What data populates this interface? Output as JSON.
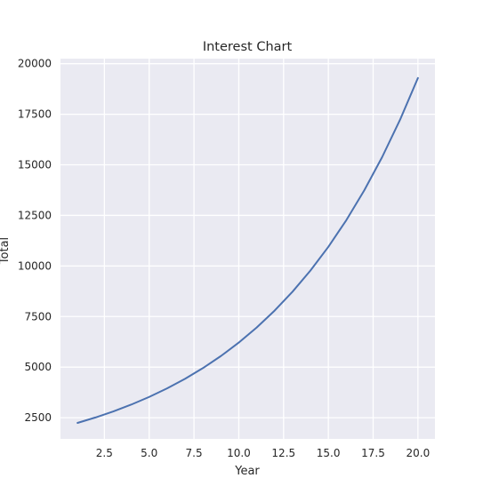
{
  "chart_data": {
    "type": "line",
    "title": "Interest Chart",
    "xlabel": "Year",
    "ylabel": "Total",
    "xlim": [
      0.05,
      20.95
    ],
    "ylim": [
      1450,
      20250
    ],
    "grid": true,
    "background_color": "#eaeaf2",
    "grid_color": "#ffffff",
    "x_ticks": [
      2.5,
      5.0,
      7.5,
      10.0,
      12.5,
      15.0,
      17.5,
      20.0
    ],
    "x_tick_labels": [
      "2.5",
      "5.0",
      "7.5",
      "10.0",
      "12.5",
      "15.0",
      "17.5",
      "20.0"
    ],
    "y_ticks": [
      2500,
      5000,
      7500,
      10000,
      12500,
      15000,
      17500,
      20000
    ],
    "y_tick_labels": [
      "2500",
      "5000",
      "7500",
      "10000",
      "12500",
      "15000",
      "17500",
      "20000"
    ],
    "series": [
      {
        "color": "#4c72b0",
        "x": [
          1,
          2,
          3,
          4,
          5,
          6,
          7,
          8,
          9,
          10,
          11,
          12,
          13,
          14,
          15,
          16,
          17,
          18,
          19,
          20
        ],
        "y": [
          2240,
          2509,
          2810,
          3147,
          3525,
          3948,
          4421,
          4952,
          5546,
          6212,
          6957,
          7792,
          8727,
          9774,
          10947,
          12261,
          13732,
          15380,
          17226,
          19293
        ]
      }
    ]
  }
}
